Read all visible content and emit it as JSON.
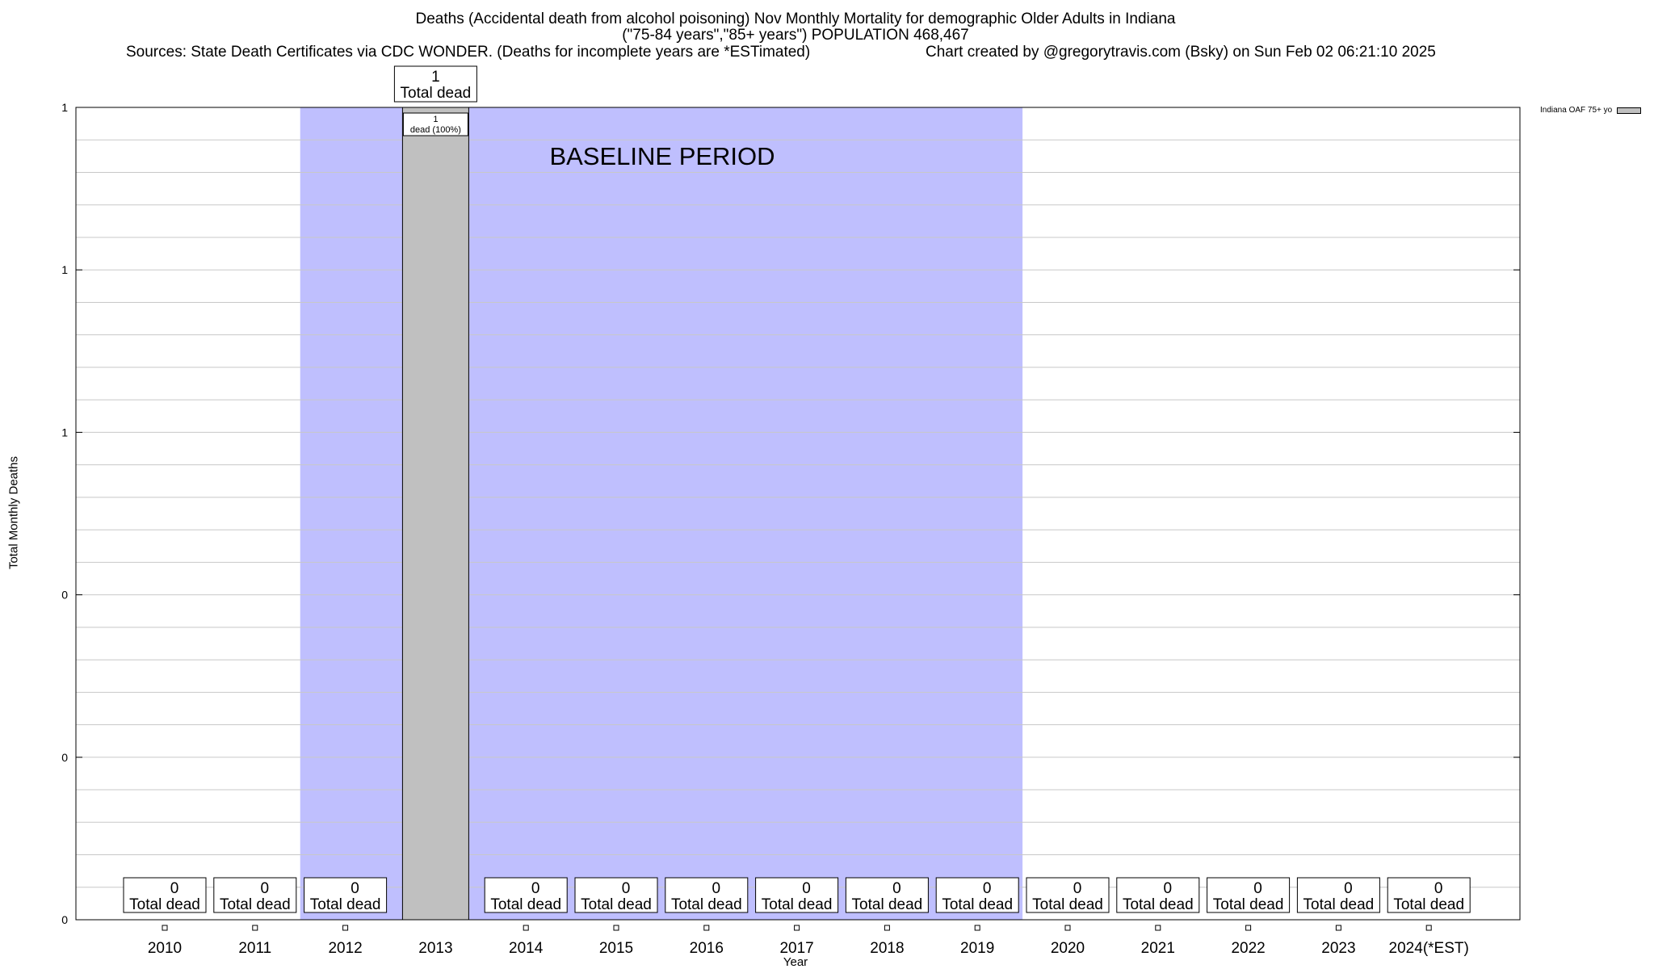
{
  "header": {
    "title_line1": "Deaths (Accidental death from alcohol poisoning) Nov Monthly Mortality for demographic Older Adults in Indiana",
    "title_line2": "(\"75-84 years\",\"85+ years\") POPULATION 468,467",
    "sources": "Sources: State Death Certificates via CDC WONDER. (Deaths for incomplete years are *ESTimated)",
    "credit": "Chart created by @gregorytravis.com (Bsky) on Sun Feb 02 06:21:10 2025"
  },
  "chart_data": {
    "type": "bar",
    "title": "Deaths (Accidental death from alcohol poisoning) Nov Monthly Mortality for demographic Older Adults in Indiana",
    "xlabel": "Year",
    "ylabel": "Total Monthly Deaths",
    "categories": [
      "2010",
      "2011",
      "2012",
      "2013",
      "2014",
      "2015",
      "2016",
      "2017",
      "2018",
      "2019",
      "2020",
      "2021",
      "2022",
      "2023",
      "2024(*EST)"
    ],
    "series": [
      {
        "name": "Indiana OAF 75+ yo",
        "values": [
          0,
          0,
          0,
          1,
          0,
          0,
          0,
          0,
          0,
          0,
          0,
          0,
          0,
          0,
          0
        ],
        "color": "#c0c0c0"
      }
    ],
    "ylim": [
      0,
      1
    ],
    "yticks": [
      "0",
      "0",
      "0",
      "1",
      "1",
      "1"
    ],
    "bar_label": "Total dead",
    "inner_label": "dead (100%)",
    "baseline_period": {
      "label": "BASELINE PERIOD",
      "start": "2012",
      "end": "2019",
      "color": "#bfbffe"
    },
    "legend_position": "top-right",
    "grid": true
  }
}
